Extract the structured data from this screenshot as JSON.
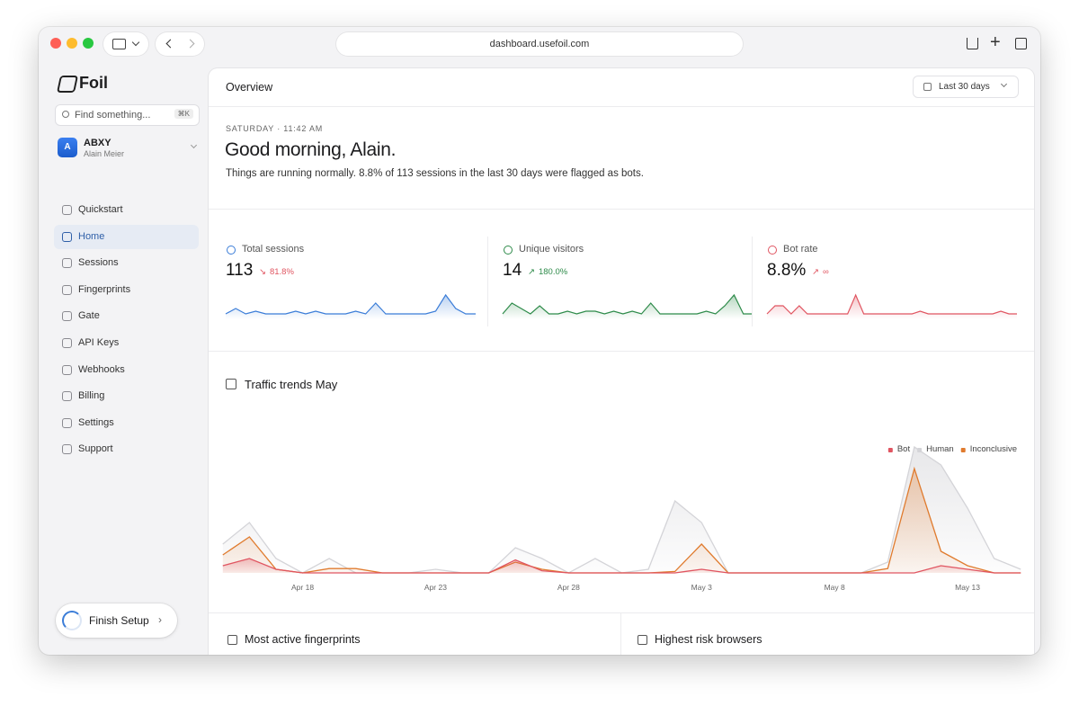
{
  "browser": {
    "url": "dashboard.usefoil.com"
  },
  "sidebar": {
    "brand": "Foil",
    "search": {
      "placeholder": "Find something...",
      "shortcut": "⌘K"
    },
    "org": {
      "initial": "A",
      "name": "ABXY",
      "user": "Alain Meier"
    },
    "nav": [
      "Quickstart",
      "Home",
      "Sessions",
      "Fingerprints",
      "Gate",
      "API Keys",
      "Webhooks",
      "Billing",
      "Settings",
      "Support"
    ],
    "active": "Home",
    "finish": "Finish Setup"
  },
  "header": {
    "title": "Overview",
    "range": "Last 30 days"
  },
  "greeting": {
    "eyebrow": "SATURDAY · 11:42 AM",
    "heading": "Good morning, Alain.",
    "summary": "Things are running normally. 8.8% of 113 sessions in the last 30 days were flagged as bots."
  },
  "stats": [
    {
      "label": "Total sessions",
      "value": "113",
      "change": "81.8%",
      "trend": "down",
      "color": "#3b7dd8",
      "sparkline": [
        2,
        4,
        2,
        3,
        2,
        2,
        2,
        3,
        2,
        3,
        2,
        2,
        2,
        3,
        2,
        6,
        2,
        2,
        2,
        2,
        2,
        3,
        9,
        4,
        2,
        2
      ]
    },
    {
      "label": "Unique visitors",
      "value": "14",
      "change": "180.0%",
      "trend": "up",
      "color": "#2e8b4a",
      "sparkline": [
        2,
        6,
        4,
        2,
        5,
        2,
        2,
        3,
        2,
        3,
        3,
        2,
        3,
        2,
        3,
        2,
        6,
        2,
        2,
        2,
        2,
        2,
        3,
        2,
        5,
        9,
        2,
        2
      ]
    },
    {
      "label": "Bot rate",
      "value": "8.8%",
      "change": "∞",
      "trend": "up",
      "color": "#e05561",
      "sparkline": [
        2,
        5,
        5,
        2,
        5,
        2,
        2,
        2,
        2,
        2,
        2,
        9,
        2,
        2,
        2,
        2,
        2,
        2,
        2,
        3,
        2,
        2,
        2,
        2,
        2,
        2,
        2,
        2,
        2,
        3,
        2,
        2
      ]
    }
  ],
  "chart_data": {
    "type": "area",
    "title": "Traffic trends May",
    "categories": [
      null,
      null,
      null,
      "Apr 18",
      null,
      null,
      null,
      null,
      "Apr 23",
      null,
      null,
      null,
      null,
      "Apr 28",
      null,
      null,
      null,
      null,
      "May 3",
      null,
      null,
      null,
      null,
      "May 8",
      null,
      null,
      null,
      null,
      "May 13",
      null,
      null
    ],
    "ylim": [
      0,
      20
    ],
    "series": [
      {
        "name": "Bot",
        "color": "#e05561",
        "values": [
          1,
          2,
          0.5,
          0,
          0,
          0,
          0,
          0,
          0,
          0,
          0,
          1.8,
          0.3,
          0,
          0,
          0,
          0,
          0,
          0.5,
          0,
          0,
          0,
          0,
          0,
          0,
          0,
          0,
          1,
          0.5,
          0,
          0
        ]
      },
      {
        "name": "Human",
        "color": "#d4d4d8",
        "values": [
          4,
          7,
          2,
          0,
          2,
          0,
          0,
          0,
          0.5,
          0,
          0,
          3.5,
          2,
          0,
          2,
          0,
          0.5,
          10,
          7,
          0,
          0,
          0,
          0,
          0,
          0,
          1.5,
          17.5,
          15,
          9,
          2,
          0.5
        ]
      },
      {
        "name": "Inconclusive",
        "color": "#e07b2e",
        "values": [
          2.5,
          5,
          0.5,
          0,
          0.6,
          0.6,
          0,
          0,
          0,
          0,
          0,
          1.5,
          0.5,
          0,
          0,
          0,
          0,
          0.2,
          4,
          0,
          0,
          0,
          0,
          0,
          0,
          0.6,
          14.5,
          3,
          1,
          0,
          0
        ]
      }
    ],
    "legend": "top-right"
  },
  "cards": [
    "Most active fingerprints",
    "Highest risk browsers"
  ]
}
